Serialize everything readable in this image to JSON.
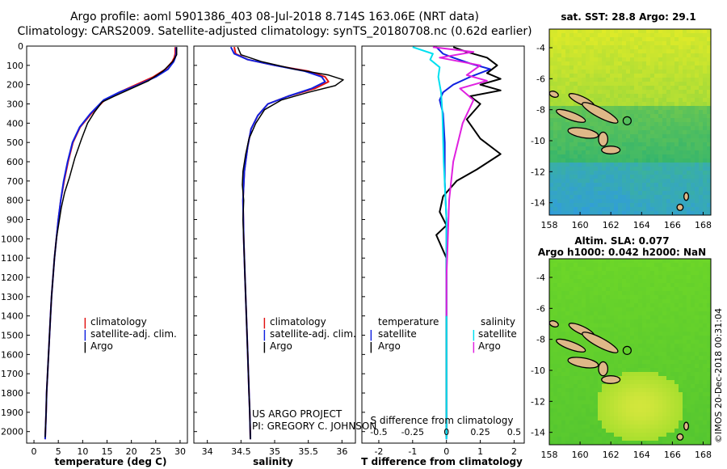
{
  "header": {
    "line1": "Argo profile: aoml 5901386_403 08-Jul-2018 8.714S 163.06E (NRT data)",
    "line2": "Climatology: CARS2009. Satellite-adjusted climatology: synTS_20180708.nc (0.62d earlier)"
  },
  "colors": {
    "climatology": "#e01010",
    "satellite": "#1020e0",
    "argo": "#000000",
    "sat_salinity": "#00e0f0",
    "argo_salinity": "#e020e0"
  },
  "depth_axis": {
    "ticks": [
      0,
      100,
      200,
      300,
      400,
      500,
      600,
      700,
      800,
      900,
      1000,
      1100,
      1200,
      1300,
      1400,
      1500,
      1600,
      1700,
      1800,
      1900,
      2000
    ],
    "range": [
      0,
      2060
    ]
  },
  "chart_data": [
    {
      "type": "line",
      "name": "temperature",
      "xlabel": "temperature (deg C)",
      "ylabel": "",
      "xlim": [
        -1.5,
        31.5
      ],
      "xticks": [
        0,
        5,
        10,
        15,
        20,
        25,
        30
      ],
      "xtick_labels": [
        "0",
        "5",
        "10",
        "15",
        "20",
        "25",
        "30"
      ],
      "ylim": [
        2060,
        0
      ],
      "legend": [
        "climatology",
        "satellite-adj. clim.",
        "Argo"
      ],
      "series": [
        {
          "name": "climatology",
          "points": [
            [
              29,
              5
            ],
            [
              29,
              40
            ],
            [
              28.8,
              60
            ],
            [
              28.4,
              80
            ],
            [
              27,
              120
            ],
            [
              24.5,
              160
            ],
            [
              21,
              200
            ],
            [
              17.5,
              240
            ],
            [
              14.5,
              280
            ],
            [
              11.8,
              350
            ],
            [
              9.5,
              420
            ],
            [
              8,
              500
            ],
            [
              7,
              600
            ],
            [
              6.2,
              700
            ],
            [
              5.5,
              800
            ],
            [
              5,
              900
            ],
            [
              4.6,
              1000
            ],
            [
              4.2,
              1100
            ],
            [
              3.9,
              1200
            ],
            [
              3.6,
              1300
            ],
            [
              3.4,
              1400
            ],
            [
              3.2,
              1500
            ],
            [
              3,
              1600
            ],
            [
              2.8,
              1700
            ],
            [
              2.6,
              1800
            ],
            [
              2.5,
              1900
            ],
            [
              2.3,
              2040
            ]
          ]
        },
        {
          "name": "satellite-adj. clim.",
          "points": [
            [
              29.2,
              5
            ],
            [
              29.2,
              40
            ],
            [
              29,
              60
            ],
            [
              28.7,
              80
            ],
            [
              27.5,
              120
            ],
            [
              25,
              160
            ],
            [
              21.5,
              200
            ],
            [
              17.5,
              240
            ],
            [
              14.3,
              280
            ],
            [
              11.6,
              350
            ],
            [
              9.4,
              420
            ],
            [
              7.9,
              500
            ],
            [
              6.9,
              600
            ],
            [
              6.1,
              700
            ],
            [
              5.5,
              800
            ],
            [
              5,
              900
            ],
            [
              4.6,
              1000
            ],
            [
              4.2,
              1100
            ],
            [
              3.9,
              1200
            ],
            [
              3.6,
              1300
            ],
            [
              3.4,
              1400
            ],
            [
              3.2,
              1500
            ],
            [
              3,
              1600
            ],
            [
              2.8,
              1700
            ],
            [
              2.6,
              1800
            ],
            [
              2.5,
              1900
            ],
            [
              2.3,
              2040
            ]
          ]
        },
        {
          "name": "Argo",
          "points": [
            [
              29.3,
              5
            ],
            [
              29.3,
              45
            ],
            [
              28.5,
              80
            ],
            [
              26.5,
              130
            ],
            [
              23.5,
              180
            ],
            [
              20,
              220
            ],
            [
              16.5,
              260
            ],
            [
              14,
              290
            ],
            [
              12.5,
              340
            ],
            [
              11,
              400
            ],
            [
              9.8,
              480
            ],
            [
              8.4,
              580
            ],
            [
              7.3,
              680
            ],
            [
              6.3,
              760
            ],
            [
              5.6,
              840
            ],
            [
              5.1,
              920
            ],
            [
              4.6,
              1000
            ],
            [
              4.2,
              1100
            ],
            [
              3.9,
              1200
            ],
            [
              3.6,
              1300
            ],
            [
              3.4,
              1400
            ],
            [
              3.2,
              1500
            ],
            [
              3,
              1600
            ],
            [
              2.8,
              1700
            ],
            [
              2.6,
              1800
            ],
            [
              2.5,
              1900
            ],
            [
              2.3,
              2030
            ]
          ]
        }
      ]
    },
    {
      "type": "line",
      "name": "salinity",
      "xlabel": "salinity",
      "ylabel": "",
      "xlim": [
        33.8,
        36.2
      ],
      "xticks": [
        34,
        34.5,
        35,
        35.5,
        36
      ],
      "xtick_labels": [
        "34",
        "34.5",
        "35",
        "35.5",
        "36"
      ],
      "ylim": [
        2060,
        0
      ],
      "legend": [
        "climatology",
        "satellite-adj. clim.",
        "Argo"
      ],
      "series": [
        {
          "name": "climatology",
          "points": [
            [
              34.4,
              5
            ],
            [
              34.42,
              40
            ],
            [
              34.6,
              70
            ],
            [
              35,
              100
            ],
            [
              35.5,
              130
            ],
            [
              35.75,
              160
            ],
            [
              35.8,
              185
            ],
            [
              35.6,
              220
            ],
            [
              35.2,
              260
            ],
            [
              34.9,
              300
            ],
            [
              34.75,
              360
            ],
            [
              34.65,
              430
            ],
            [
              34.6,
              520
            ],
            [
              34.55,
              650
            ],
            [
              34.53,
              800
            ],
            [
              34.54,
              1000
            ],
            [
              34.56,
              1200
            ],
            [
              34.58,
              1400
            ],
            [
              34.6,
              1600
            ],
            [
              34.62,
              1800
            ],
            [
              34.63,
              1900
            ],
            [
              34.64,
              2040
            ]
          ]
        },
        {
          "name": "satellite-adj. clim.",
          "points": [
            [
              34.35,
              5
            ],
            [
              34.4,
              40
            ],
            [
              34.6,
              70
            ],
            [
              35,
              100
            ],
            [
              35.45,
              130
            ],
            [
              35.7,
              160
            ],
            [
              35.75,
              185
            ],
            [
              35.55,
              220
            ],
            [
              35.2,
              260
            ],
            [
              34.9,
              300
            ],
            [
              34.75,
              360
            ],
            [
              34.65,
              430
            ],
            [
              34.6,
              520
            ],
            [
              34.55,
              650
            ],
            [
              34.53,
              800
            ],
            [
              34.54,
              1000
            ],
            [
              34.56,
              1200
            ],
            [
              34.58,
              1400
            ],
            [
              34.6,
              1600
            ],
            [
              34.62,
              1800
            ],
            [
              34.63,
              1900
            ],
            [
              34.64,
              2040
            ]
          ]
        },
        {
          "name": "Argo",
          "points": [
            [
              34.45,
              5
            ],
            [
              34.5,
              45
            ],
            [
              34.8,
              80
            ],
            [
              35.3,
              120
            ],
            [
              35.8,
              150
            ],
            [
              36.02,
              175
            ],
            [
              35.9,
              205
            ],
            [
              35.5,
              240
            ],
            [
              35.1,
              280
            ],
            [
              34.85,
              330
            ],
            [
              34.72,
              400
            ],
            [
              34.62,
              480
            ],
            [
              34.57,
              560
            ],
            [
              34.53,
              650
            ],
            [
              34.52,
              720
            ],
            [
              34.54,
              800
            ],
            [
              34.53,
              900
            ],
            [
              34.54,
              1000
            ],
            [
              34.56,
              1200
            ],
            [
              34.58,
              1400
            ],
            [
              34.6,
              1600
            ],
            [
              34.62,
              1800
            ],
            [
              34.63,
              1900
            ],
            [
              34.64,
              2040
            ]
          ]
        }
      ]
    },
    {
      "type": "line",
      "name": "differences",
      "xlabel": "T difference from climatology",
      "xlabel_top": "S difference from climatology",
      "xlim": [
        -2.5,
        2.3
      ],
      "xticks": [
        -2,
        -1,
        0,
        1,
        2
      ],
      "xtick_labels": [
        "-2",
        "-1",
        "0",
        "1",
        "2"
      ],
      "s_tick_labels": [
        "-0.5",
        "-0.25",
        "0",
        "0.25",
        "0.5"
      ],
      "ylim": [
        2060,
        0
      ],
      "legend_left_title": "temperature",
      "legend_right_title": "salinity",
      "legend": [
        "satellite",
        "Argo",
        "satellite",
        "Argo"
      ],
      "series": [
        {
          "name": "temperature satellite",
          "points": [
            [
              -0.3,
              5
            ],
            [
              -0.1,
              40
            ],
            [
              0.2,
              60
            ],
            [
              0.7,
              90
            ],
            [
              1.3,
              120
            ],
            [
              0.7,
              160
            ],
            [
              0.2,
              200
            ],
            [
              -0.1,
              240
            ],
            [
              -0.2,
              280
            ],
            [
              -0.1,
              350
            ],
            [
              -0.05,
              500
            ],
            [
              -0.05,
              700
            ],
            [
              0,
              900
            ],
            [
              0,
              1100
            ],
            [
              0,
              1300
            ],
            [
              0,
              2040
            ]
          ]
        },
        {
          "name": "temperature Argo",
          "points": [
            [
              0.2,
              5
            ],
            [
              0.6,
              30
            ],
            [
              1.2,
              60
            ],
            [
              1.5,
              100
            ],
            [
              1.2,
              140
            ],
            [
              1.6,
              170
            ],
            [
              1.0,
              200
            ],
            [
              1.6,
              230
            ],
            [
              0.7,
              260
            ],
            [
              1.0,
              300
            ],
            [
              0.6,
              380
            ],
            [
              1.0,
              480
            ],
            [
              1.6,
              560
            ],
            [
              0.9,
              640
            ],
            [
              0.3,
              700
            ],
            [
              -0.1,
              780
            ],
            [
              -0.2,
              860
            ],
            [
              0.0,
              930
            ],
            [
              -0.3,
              980
            ],
            [
              0,
              1100
            ],
            [
              0,
              1300
            ],
            [
              0,
              2030
            ]
          ]
        },
        {
          "name": "salinity satellite",
          "points": [
            [
              -0.25,
              5
            ],
            [
              -0.1,
              40
            ],
            [
              -0.12,
              70
            ],
            [
              -0.05,
              110
            ],
            [
              -0.06,
              160
            ],
            [
              -0.04,
              240
            ],
            [
              -0.03,
              350
            ],
            [
              -0.02,
              600
            ],
            [
              0,
              900
            ],
            [
              0,
              1200
            ],
            [
              0,
              2040
            ]
          ]
        },
        {
          "name": "salinity Argo",
          "points": [
            [
              -0.1,
              5
            ],
            [
              0.2,
              30
            ],
            [
              -0.05,
              60
            ],
            [
              0.25,
              100
            ],
            [
              0.15,
              150
            ],
            [
              0.3,
              180
            ],
            [
              0.1,
              220
            ],
            [
              0.2,
              280
            ],
            [
              0.12,
              400
            ],
            [
              0.05,
              600
            ],
            [
              0.02,
              800
            ],
            [
              0.01,
              1000
            ],
            [
              0,
              1200
            ],
            [
              0,
              1400
            ]
          ]
        }
      ]
    }
  ],
  "maps": {
    "sst": {
      "title": "sat. SST: 28.8 Argo: 29.1",
      "xticks": [
        "158",
        "160",
        "162",
        "164",
        "166",
        "168"
      ],
      "yticks": [
        "-4",
        "-6",
        "-8",
        "-10",
        "-12",
        "-14"
      ]
    },
    "sla": {
      "title1": "Altim. SLA: 0.077",
      "title2": "Argo h1000: 0.042 h2000: NaN",
      "xticks": [
        "158",
        "160",
        "162",
        "164",
        "166",
        "168"
      ],
      "yticks": [
        "-4",
        "-6",
        "-8",
        "-10",
        "-12",
        "-14"
      ]
    }
  },
  "annotations": {
    "project": "US ARGO PROJECT",
    "pi": "PI: GREGORY C. JOHNSON",
    "imos": "©IMOS 20-Dec-2018 00:31:04"
  }
}
